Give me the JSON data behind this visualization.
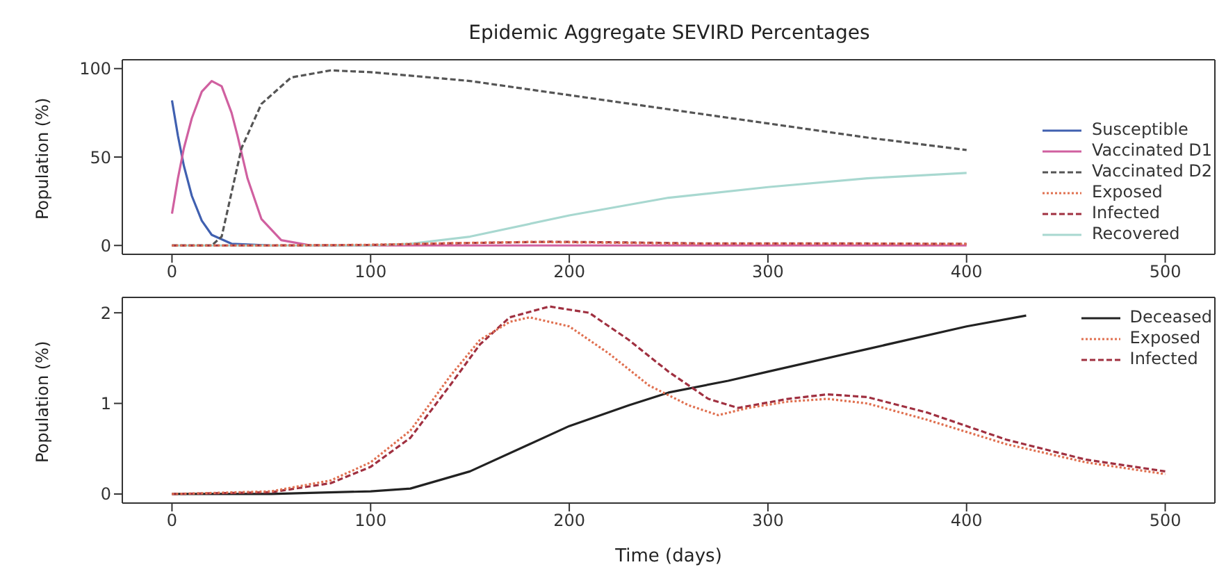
{
  "chart_data": [
    {
      "type": "line",
      "title": "Epidemic Aggregate SEVIRD Percentages",
      "ylabel": "Population (%)",
      "xlim": [
        -25,
        525
      ],
      "xticks": [
        0,
        100,
        200,
        300,
        400,
        500
      ],
      "ylim": [
        -5,
        105
      ],
      "yticks": [
        0,
        50,
        100
      ],
      "legend": "right",
      "series": [
        {
          "name": "Susceptible",
          "color": "#4060b0",
          "line_style": "solid",
          "x": [
            0,
            3,
            6,
            10,
            15,
            20,
            30,
            50
          ],
          "values": [
            82,
            62,
            45,
            28,
            14,
            6,
            1,
            0
          ]
        },
        {
          "name": "Vaccinated D1",
          "color": "#d060a0",
          "line_style": "solid",
          "x": [
            0,
            3,
            6,
            10,
            15,
            20,
            25,
            30,
            33,
            38,
            45,
            55,
            70,
            100,
            200,
            300,
            400
          ],
          "values": [
            18,
            38,
            55,
            72,
            87,
            93,
            90,
            75,
            62,
            38,
            15,
            3,
            0,
            0,
            0,
            0,
            0
          ]
        },
        {
          "name": "Vaccinated D2",
          "color": "#555555",
          "line_style": "dashed",
          "x": [
            0,
            20,
            25,
            30,
            35,
            45,
            60,
            80,
            100,
            150,
            200,
            250,
            300,
            350,
            400
          ],
          "values": [
            0,
            0,
            5,
            30,
            55,
            80,
            95,
            99,
            98,
            93,
            85,
            77,
            69,
            61,
            54
          ]
        },
        {
          "name": "Exposed",
          "color": "#e07050",
          "line_style": "dotted",
          "x": [
            0,
            50,
            100,
            140,
            180,
            220,
            260,
            300,
            350,
            400
          ],
          "values": [
            0,
            0,
            0.4,
            1.3,
            2,
            1.6,
            1,
            1,
            1,
            0.8
          ]
        },
        {
          "name": "Infected",
          "color": "#a03040",
          "line_style": "dashed",
          "x": [
            0,
            50,
            100,
            140,
            190,
            230,
            270,
            310,
            350,
            400
          ],
          "values": [
            0,
            0,
            0.3,
            1.2,
            2.1,
            1.7,
            1.1,
            1.1,
            1.1,
            0.9
          ]
        },
        {
          "name": "Recovered",
          "color": "#a8d8d0",
          "line_style": "solid",
          "x": [
            0,
            100,
            120,
            150,
            200,
            250,
            300,
            350,
            400
          ],
          "values": [
            0,
            0,
            1,
            5,
            17,
            27,
            33,
            38,
            41
          ]
        }
      ]
    },
    {
      "type": "line",
      "xlabel": "Time (days)",
      "ylabel": "Population (%)",
      "xlim": [
        -25,
        525
      ],
      "xticks": [
        0,
        100,
        200,
        300,
        400,
        500
      ],
      "ylim": [
        -0.1,
        2.17
      ],
      "yticks": [
        0,
        1,
        2
      ],
      "legend": "top right",
      "series": [
        {
          "name": "Deceased",
          "color": "#222222",
          "line_style": "solid",
          "x": [
            0,
            50,
            100,
            120,
            150,
            180,
            200,
            230,
            250,
            280,
            300,
            350,
            400,
            430
          ],
          "values": [
            0,
            0,
            0.03,
            0.06,
            0.25,
            0.55,
            0.75,
            0.98,
            1.12,
            1.25,
            1.35,
            1.6,
            1.85,
            1.97
          ]
        },
        {
          "name": "Exposed",
          "color": "#e07050",
          "line_style": "dotted",
          "x": [
            0,
            50,
            80,
            100,
            120,
            140,
            155,
            170,
            180,
            200,
            220,
            240,
            260,
            275,
            290,
            310,
            330,
            350,
            380,
            420,
            460,
            500
          ],
          "values": [
            0,
            0.03,
            0.15,
            0.35,
            0.7,
            1.3,
            1.7,
            1.9,
            1.95,
            1.85,
            1.55,
            1.2,
            0.98,
            0.87,
            0.95,
            1.02,
            1.05,
            1,
            0.82,
            0.55,
            0.35,
            0.22
          ]
        },
        {
          "name": "Infected",
          "color": "#a03040",
          "line_style": "dashed",
          "x": [
            0,
            50,
            80,
            100,
            120,
            140,
            155,
            170,
            190,
            210,
            230,
            250,
            270,
            285,
            310,
            330,
            350,
            380,
            420,
            460,
            500
          ],
          "values": [
            0,
            0.02,
            0.12,
            0.3,
            0.62,
            1.2,
            1.65,
            1.95,
            2.07,
            2,
            1.7,
            1.35,
            1.05,
            0.95,
            1.05,
            1.1,
            1.07,
            0.9,
            0.6,
            0.38,
            0.25
          ]
        }
      ]
    }
  ]
}
